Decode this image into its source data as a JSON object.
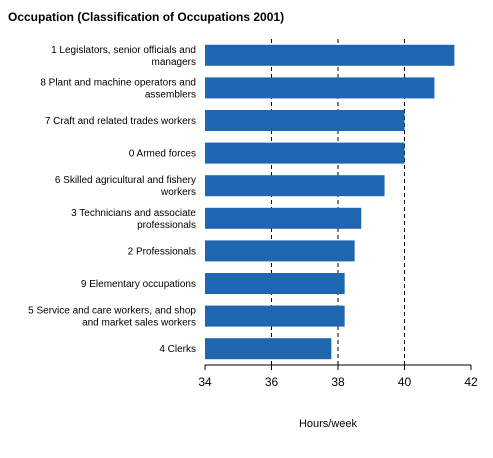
{
  "chart_data": {
    "type": "bar",
    "orientation": "horizontal",
    "title": "Occupation (Classification of Occupations 2001)",
    "xlabel": "Hours/week",
    "ylabel": "",
    "xlim": [
      34,
      42
    ],
    "xticks": [
      34,
      36,
      38,
      40,
      42
    ],
    "grid": "dashed vertical lines at 36, 38, 40",
    "bar_color": "#1f66b0",
    "categories": [
      [
        "1 Legislators, senior officials and",
        "managers"
      ],
      [
        "8 Plant and machine operators and",
        "assemblers"
      ],
      [
        "7 Craft and related trades workers"
      ],
      [
        "0 Armed forces"
      ],
      [
        "6 Skilled agricultural and fishery",
        "workers"
      ],
      [
        "3 Technicians and associate",
        "professionals"
      ],
      [
        "2 Professionals"
      ],
      [
        "9 Elementary occupations"
      ],
      [
        "5 Service and care workers, and shop",
        "and market sales workers"
      ],
      [
        "4 Clerks"
      ]
    ],
    "values": [
      41.5,
      40.9,
      40.0,
      40.0,
      39.4,
      38.7,
      38.5,
      38.2,
      38.2,
      37.8
    ]
  }
}
